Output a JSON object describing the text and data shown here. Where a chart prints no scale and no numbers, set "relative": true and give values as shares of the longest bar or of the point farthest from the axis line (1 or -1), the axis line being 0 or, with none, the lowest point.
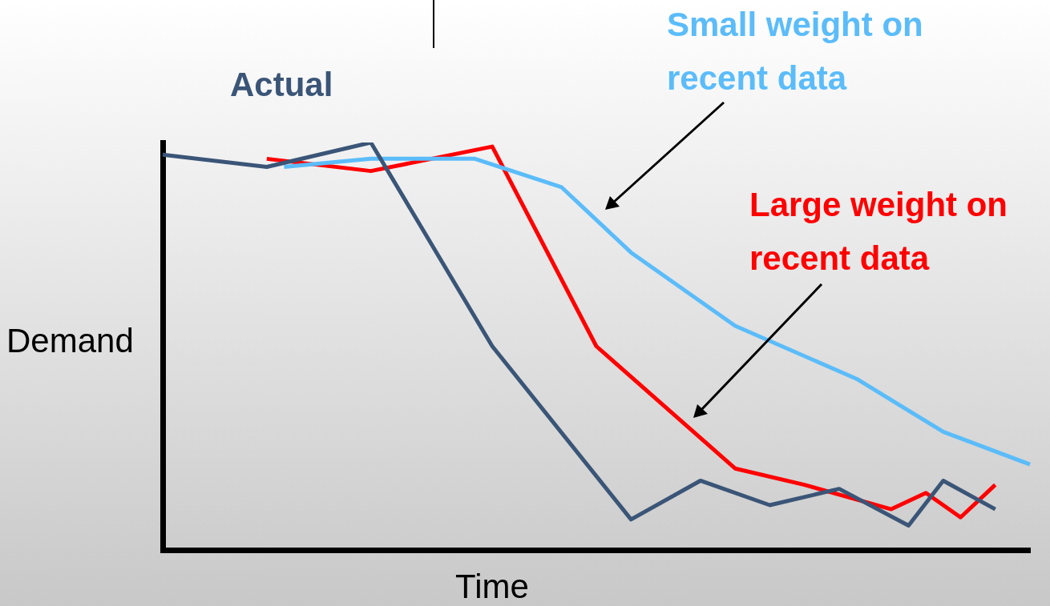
{
  "chart_data": {
    "type": "line",
    "relative": true,
    "xlabel": "Time",
    "ylabel": "Demand",
    "marker": "none",
    "categories": [
      null,
      null,
      null,
      null,
      null,
      null,
      null,
      null,
      null,
      null,
      null,
      null,
      null,
      null,
      null,
      null,
      null,
      null,
      null,
      null,
      null,
      null,
      null,
      null,
      null,
      null,
      null,
      null,
      null,
      null,
      null,
      null,
      null,
      null,
      null,
      null,
      null,
      null,
      null,
      null,
      null,
      null,
      null,
      null,
      null,
      null,
      null,
      null,
      null,
      null,
      null
    ],
    "series": [
      {
        "name": "Actual",
        "color": "#3a5577",
        "values": [
          0.97,
          null,
          null,
          null,
          null,
          null,
          0.94,
          null,
          null,
          null,
          null,
          null,
          1,
          null,
          null,
          null,
          null,
          null,
          null,
          0.5,
          null,
          null,
          null,
          null,
          null,
          null,
          null,
          0.075,
          null,
          null,
          null,
          0.17,
          null,
          null,
          null,
          0.11,
          null,
          null,
          null,
          0.15,
          null,
          null,
          null,
          0.06,
          null,
          0.17,
          null,
          null,
          0.1,
          null,
          null
        ]
      },
      {
        "name": "Small weight on recent data",
        "color": "#5bbcfa",
        "values": [
          null,
          null,
          null,
          null,
          null,
          null,
          null,
          0.94,
          null,
          null,
          null,
          null,
          0.96,
          null,
          null,
          null,
          null,
          null,
          0.96,
          null,
          null,
          null,
          null,
          0.89,
          null,
          null,
          null,
          0.73,
          null,
          null,
          null,
          null,
          null,
          0.55,
          null,
          null,
          null,
          null,
          null,
          null,
          0.42,
          null,
          null,
          null,
          null,
          0.29,
          null,
          null,
          null,
          null,
          0.21
        ]
      },
      {
        "name": "Large weight on recent data",
        "color": "#ff0000",
        "values": [
          null,
          null,
          null,
          null,
          null,
          null,
          0.96,
          null,
          null,
          null,
          null,
          null,
          0.93,
          null,
          null,
          null,
          null,
          null,
          null,
          0.99,
          null,
          null,
          null,
          null,
          null,
          0.5,
          null,
          null,
          null,
          null,
          null,
          null,
          null,
          0.2,
          null,
          null,
          null,
          0.16,
          null,
          null,
          null,
          null,
          0.1,
          null,
          0.14,
          null,
          0.08,
          null,
          0.16,
          null,
          null
        ]
      }
    ]
  }
}
